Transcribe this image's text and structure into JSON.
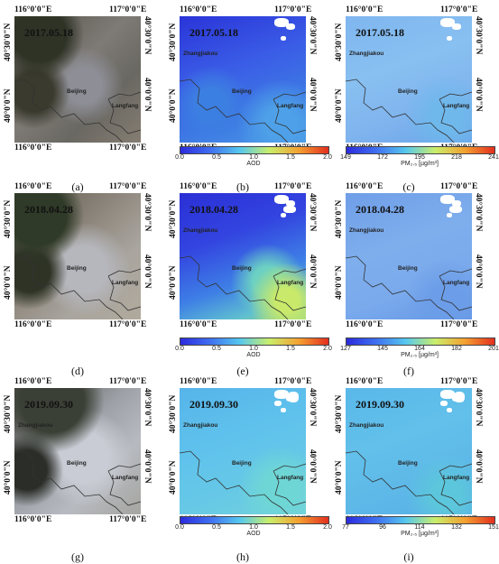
{
  "lon_labels": [
    "116°0'0\"E",
    "117°0'0\"E"
  ],
  "lat_labels": [
    "40°30'0\"N",
    "40°0'0\"N"
  ],
  "cities": {
    "zhangjiakou": "Zhangjiakou",
    "beijing": "Beijing",
    "langfang": "Langfang"
  },
  "rows": [
    {
      "date": "2017.05.18",
      "captions": [
        "(a)",
        "(b)",
        "(c)"
      ],
      "aod_bar": {
        "ticks": [
          "0.0",
          "0.5",
          "1.0",
          "1.5",
          "2.0"
        ],
        "title": "AOD"
      },
      "pm_bar": {
        "ticks": [
          "149",
          "172",
          "195",
          "218",
          "241"
        ],
        "title": "PM₂.₅ [µg/m³]"
      }
    },
    {
      "date": "2018.04.28",
      "captions": [
        "(d)",
        "(e)",
        "(f)"
      ],
      "aod_bar": {
        "ticks": [
          "0.0",
          "0.5",
          "1.0",
          "1.5",
          "2.0"
        ],
        "title": "AOD"
      },
      "pm_bar": {
        "ticks": [
          "127",
          "145",
          "164",
          "182",
          "201"
        ],
        "title": "PM₂.₅ [µg/m³]"
      }
    },
    {
      "date": "2019.09.30",
      "captions": [
        "(g)",
        "(h)",
        "(i)"
      ],
      "aod_bar": {
        "ticks": [
          "0.0",
          "0.5",
          "1.0",
          "1.5",
          "2.0"
        ],
        "title": "AOD"
      },
      "pm_bar": {
        "ticks": [
          "77",
          "96",
          "114",
          "132",
          "151"
        ],
        "title": "PM₂.₅ [µg/m³]"
      }
    }
  ],
  "colors": {
    "colorbar": [
      "#2b2bdc",
      "#3f6ff0",
      "#55c8ee",
      "#c9ee6a",
      "#f4a030",
      "#e32f1f"
    ]
  }
}
